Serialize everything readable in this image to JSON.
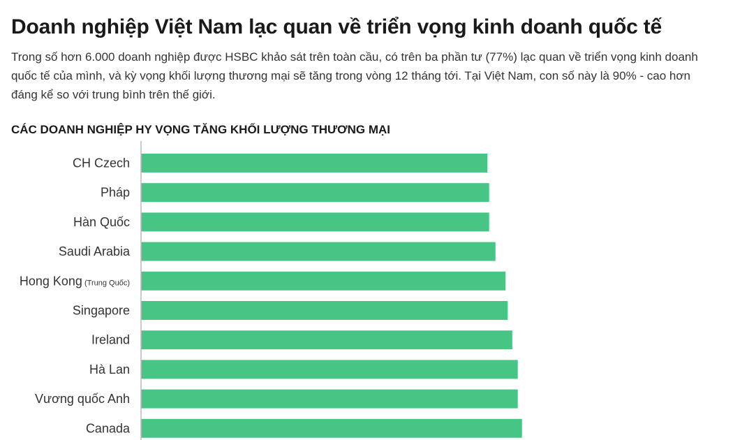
{
  "header": {
    "title": "Doanh nghiệp Việt Nam lạc quan về triển vọng kinh doanh quốc tế",
    "description": "Trong số hơn 6.000 doanh nghiệp được HSBC khảo sát trên toàn cầu, có trên ba phần tư (77%) lạc quan về triển vọng kinh doanh quốc tế của mình, và kỳ vọng khối lượng thương mại sẽ tăng trong vòng 12 tháng tới. Tại Việt Nam, con số này là 90% - cao hơn đáng kể so với trung bình trên thế giới."
  },
  "chart_data": {
    "type": "bar",
    "orientation": "horizontal",
    "title": "CÁC DOANH NGHIỆP HY VỌNG TĂNG KHỐI LƯỢNG THƯƠNG MẠI",
    "categories": [
      "CH Czech",
      "Pháp",
      "Hàn Quốc",
      "Saudi Arabia",
      "Hong Kong",
      "Singapore",
      "Ireland",
      "Hà Lan",
      "Vương quốc Anh",
      "Canada"
    ],
    "category_notes": [
      "",
      "",
      "",
      "",
      "(Trung Quốc)",
      "",
      "",
      "",
      "",
      ""
    ],
    "values": [
      82.3,
      82.7,
      82.7,
      84.2,
      86.6,
      87.1,
      88.2,
      89.5,
      89.5,
      90.5
    ],
    "xlim": [
      0,
      100
    ],
    "bar_color": "#47c584",
    "axis_color": "#bbbbbb",
    "grid": false,
    "legend": "none"
  }
}
